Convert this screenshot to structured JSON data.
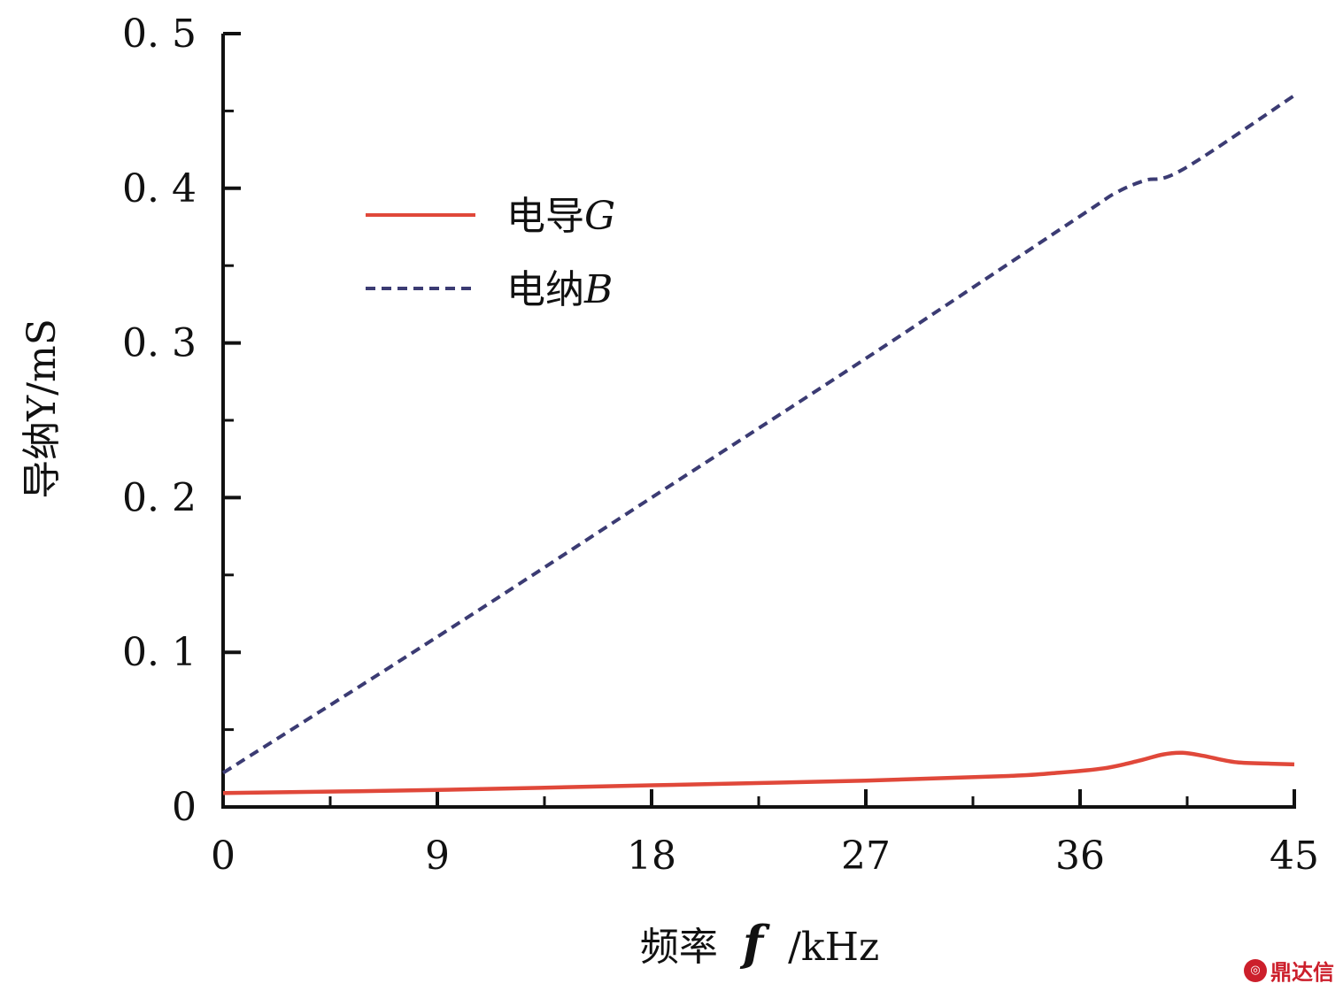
{
  "chart_data": {
    "type": "line",
    "xlabel_parts": [
      "频率",
      "f",
      "/kHz"
    ],
    "ylabel": "导纳Y/mS",
    "xlim": [
      0,
      45
    ],
    "ylim": [
      0,
      0.5
    ],
    "x_ticks": [
      "0",
      "9",
      "18",
      "27",
      "36",
      "45"
    ],
    "y_ticks": [
      "0",
      "0.1",
      "0.2",
      "0.3",
      "0.4",
      "0.5"
    ],
    "legend_position": "top-left",
    "grid": false,
    "series": [
      {
        "name_parts": [
          "电导",
          "G"
        ],
        "color": "#e0483a",
        "style": "solid",
        "points": [
          [
            0,
            0.009
          ],
          [
            9,
            0.011
          ],
          [
            18,
            0.014
          ],
          [
            27,
            0.017
          ],
          [
            33,
            0.02
          ],
          [
            35,
            0.022
          ],
          [
            37,
            0.025
          ],
          [
            38.5,
            0.03
          ],
          [
            39.5,
            0.034
          ],
          [
            40.3,
            0.035
          ],
          [
            41.2,
            0.033
          ],
          [
            42.5,
            0.029
          ],
          [
            44,
            0.028
          ],
          [
            45,
            0.0275
          ]
        ]
      },
      {
        "name_parts": [
          "电纳",
          "B"
        ],
        "color": "#3b3b73",
        "style": "dashed",
        "points": [
          [
            0,
            0.022
          ],
          [
            9,
            0.11
          ],
          [
            18,
            0.2
          ],
          [
            27,
            0.29
          ],
          [
            36,
            0.382
          ],
          [
            37.5,
            0.397
          ],
          [
            38.7,
            0.405
          ],
          [
            40.3,
            0.412
          ],
          [
            45,
            0.46
          ]
        ]
      }
    ]
  },
  "watermark": {
    "icon": "dingda-logo-icon",
    "text": "鼎达信"
  }
}
